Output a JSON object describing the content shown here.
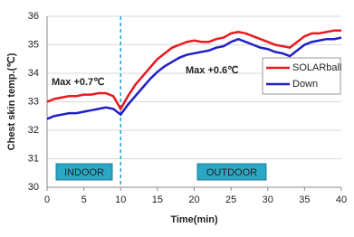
{
  "chart_data": {
    "type": "line",
    "y_label": "Chest skin temp.(℃)",
    "x_label": "Time(min)",
    "x": [
      0,
      1,
      2,
      3,
      4,
      5,
      6,
      7,
      8,
      9,
      10,
      11,
      12,
      13,
      14,
      15,
      16,
      17,
      18,
      19,
      20,
      21,
      22,
      23,
      24,
      25,
      26,
      27,
      28,
      29,
      30,
      31,
      32,
      33,
      34,
      35,
      36,
      37,
      38,
      39,
      40
    ],
    "series": [
      {
        "name": "SOLARball",
        "color": "#e8191f",
        "values": [
          33.0,
          33.1,
          33.15,
          33.2,
          33.2,
          33.25,
          33.25,
          33.3,
          33.3,
          33.2,
          32.75,
          33.2,
          33.6,
          33.9,
          34.2,
          34.5,
          34.7,
          34.9,
          35.0,
          35.1,
          35.15,
          35.1,
          35.1,
          35.2,
          35.25,
          35.4,
          35.45,
          35.4,
          35.3,
          35.2,
          35.1,
          35.0,
          34.95,
          34.9,
          35.1,
          35.3,
          35.4,
          35.4,
          35.45,
          35.5,
          35.5
        ]
      },
      {
        "name": "Down",
        "color": "#1f1fc8",
        "values": [
          32.4,
          32.5,
          32.55,
          32.6,
          32.6,
          32.65,
          32.7,
          32.75,
          32.8,
          32.75,
          32.55,
          32.9,
          33.2,
          33.5,
          33.8,
          34.05,
          34.25,
          34.4,
          34.55,
          34.65,
          34.7,
          34.75,
          34.8,
          34.9,
          34.95,
          35.1,
          35.2,
          35.1,
          35.0,
          34.9,
          34.85,
          34.75,
          34.7,
          34.6,
          34.8,
          35.0,
          35.1,
          35.15,
          35.2,
          35.2,
          35.25
        ]
      }
    ],
    "xlim": [
      0,
      40
    ],
    "xticks": [
      0,
      5,
      10,
      15,
      20,
      25,
      30,
      35,
      40
    ],
    "ylim": [
      30,
      36
    ],
    "yticks": [
      30,
      31,
      32,
      33,
      34,
      35,
      36
    ],
    "grid": true,
    "legend": "upper right",
    "vline": 10,
    "annotations": [
      "Max +0.7℃",
      "Max +0.6℃"
    ],
    "phases": [
      "INDOOR",
      "OUTDOOR"
    ]
  }
}
